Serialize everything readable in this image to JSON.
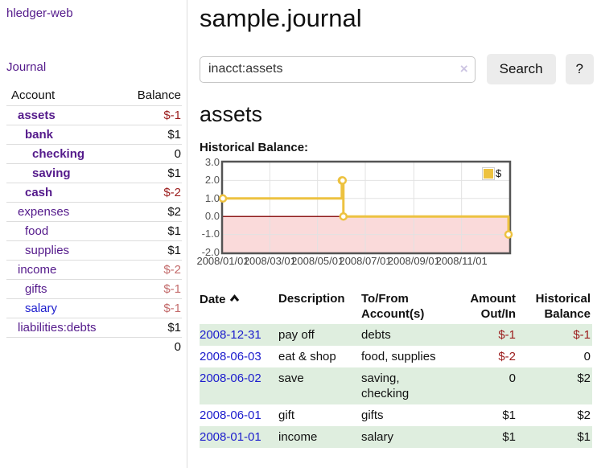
{
  "app": {
    "brand": "hledger-web"
  },
  "nav": {
    "journal": "Journal"
  },
  "sidebar": {
    "columns": {
      "account": "Account",
      "balance": "Balance"
    },
    "accounts": [
      {
        "name": "assets",
        "depth": 1,
        "balance": "$-1",
        "bold": true,
        "neg": "strong"
      },
      {
        "name": "bank",
        "depth": 2,
        "balance": "$1",
        "bold": true
      },
      {
        "name": "checking",
        "depth": 3,
        "balance": "0",
        "bold": true
      },
      {
        "name": "saving",
        "depth": 3,
        "balance": "$1",
        "bold": true
      },
      {
        "name": "cash",
        "depth": 2,
        "balance": "$-2",
        "bold": true,
        "neg": "strong"
      },
      {
        "name": "expenses",
        "depth": 1,
        "balance": "$2"
      },
      {
        "name": "food",
        "depth": 2,
        "balance": "$1"
      },
      {
        "name": "supplies",
        "depth": 2,
        "balance": "$1"
      },
      {
        "name": "income",
        "depth": 1,
        "balance": "$-2",
        "neg": "muted"
      },
      {
        "name": "gifts",
        "depth": 2,
        "balance": "$-1",
        "neg": "muted"
      },
      {
        "name": "salary",
        "depth": 2,
        "balance": "$-1",
        "neg": "muted",
        "blue": true
      },
      {
        "name": "liabilities:debts",
        "depth": 1,
        "balance": "$1"
      }
    ],
    "total": "0"
  },
  "main": {
    "title": "sample.journal",
    "search": {
      "value": "inacct:assets",
      "clear": "×",
      "button": "Search",
      "help": "?"
    },
    "account_heading": "assets",
    "chart_heading": "Historical Balance:"
  },
  "chart_data": {
    "type": "line",
    "step": true,
    "title": "Historical Balance",
    "series": [
      {
        "name": "$",
        "color": "#edc240",
        "points": [
          [
            "2008-01-01",
            1
          ],
          [
            "2008-06-01",
            2
          ],
          [
            "2008-06-02",
            2
          ],
          [
            "2008-06-03",
            0
          ],
          [
            "2008-12-31",
            -1
          ]
        ]
      }
    ],
    "x_domain": [
      "2008-01-01",
      "2009-01-01"
    ],
    "y_domain": [
      -2,
      3
    ],
    "y_ticks": [
      "3.0",
      "2.0",
      "1.0",
      "0.0",
      "-1.0",
      "-2.0"
    ],
    "x_ticks": [
      "2008/01/01",
      "2008/03/01",
      "2008/05/01",
      "2008/07/01",
      "2008/09/01",
      "2008/11/01"
    ],
    "grid": true,
    "legend_position": "top-right",
    "negative_region_color": "#fadada",
    "zero_line_color": "#8f1b1b",
    "plot_border_color": "#545454",
    "grid_color": "#e2e2e2"
  },
  "register": {
    "header": {
      "date": "Date",
      "description": "Description",
      "accounts": "To/From Account(s)",
      "amount": "Amount Out/In",
      "balance": "Historical Balance"
    },
    "rows": [
      {
        "date": "2008-12-31",
        "description": "pay off",
        "accounts": "debts",
        "amount": "$-1",
        "amount_negative": true,
        "balance": "$-1",
        "balance_negative": true
      },
      {
        "date": "2008-06-03",
        "description": "eat & shop",
        "accounts": "food, supplies",
        "amount": "$-2",
        "amount_negative": true,
        "balance": "0",
        "balance_negative": false
      },
      {
        "date": "2008-06-02",
        "description": "save",
        "accounts": "saving, checking",
        "amount": "0",
        "amount_negative": false,
        "balance": "$2",
        "balance_negative": false
      },
      {
        "date": "2008-06-01",
        "description": "gift",
        "accounts": "gifts",
        "amount": "$1",
        "amount_negative": false,
        "balance": "$2",
        "balance_negative": false
      },
      {
        "date": "2008-01-01",
        "description": "income",
        "accounts": "salary",
        "amount": "$1",
        "amount_negative": false,
        "balance": "$1",
        "balance_negative": false
      }
    ]
  },
  "colors": {
    "accent_purple": "#541a8b",
    "link_blue": "#1c1ccd",
    "negative_strong": "#9b1c1c",
    "negative_muted": "#c36b6b",
    "row_green": "#dfeedf",
    "chart_line": "#edc240"
  }
}
